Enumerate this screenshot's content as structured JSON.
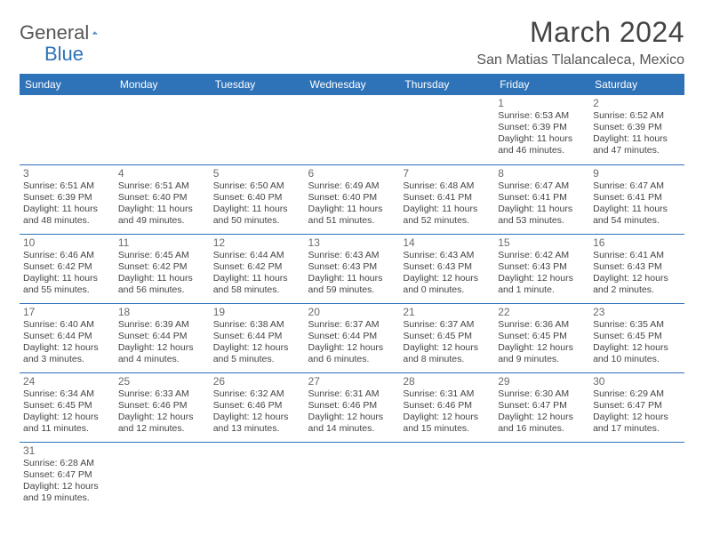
{
  "brand": {
    "word1": "General",
    "word2": "Blue"
  },
  "title": "March 2024",
  "location": "San Matias Tlalancaleca, Mexico",
  "colors": {
    "header_bg": "#2e72b8",
    "header_text": "#ffffff",
    "row_divider": "#2e72b8",
    "text": "#444444",
    "daynum": "#6a6a6a",
    "page_bg": "#ffffff"
  },
  "day_headers": [
    "Sunday",
    "Monday",
    "Tuesday",
    "Wednesday",
    "Thursday",
    "Friday",
    "Saturday"
  ],
  "weeks": [
    [
      null,
      null,
      null,
      null,
      null,
      {
        "n": "1",
        "sr": "Sunrise: 6:53 AM",
        "ss": "Sunset: 6:39 PM",
        "d1": "Daylight: 11 hours",
        "d2": "and 46 minutes."
      },
      {
        "n": "2",
        "sr": "Sunrise: 6:52 AM",
        "ss": "Sunset: 6:39 PM",
        "d1": "Daylight: 11 hours",
        "d2": "and 47 minutes."
      }
    ],
    [
      {
        "n": "3",
        "sr": "Sunrise: 6:51 AM",
        "ss": "Sunset: 6:39 PM",
        "d1": "Daylight: 11 hours",
        "d2": "and 48 minutes."
      },
      {
        "n": "4",
        "sr": "Sunrise: 6:51 AM",
        "ss": "Sunset: 6:40 PM",
        "d1": "Daylight: 11 hours",
        "d2": "and 49 minutes."
      },
      {
        "n": "5",
        "sr": "Sunrise: 6:50 AM",
        "ss": "Sunset: 6:40 PM",
        "d1": "Daylight: 11 hours",
        "d2": "and 50 minutes."
      },
      {
        "n": "6",
        "sr": "Sunrise: 6:49 AM",
        "ss": "Sunset: 6:40 PM",
        "d1": "Daylight: 11 hours",
        "d2": "and 51 minutes."
      },
      {
        "n": "7",
        "sr": "Sunrise: 6:48 AM",
        "ss": "Sunset: 6:41 PM",
        "d1": "Daylight: 11 hours",
        "d2": "and 52 minutes."
      },
      {
        "n": "8",
        "sr": "Sunrise: 6:47 AM",
        "ss": "Sunset: 6:41 PM",
        "d1": "Daylight: 11 hours",
        "d2": "and 53 minutes."
      },
      {
        "n": "9",
        "sr": "Sunrise: 6:47 AM",
        "ss": "Sunset: 6:41 PM",
        "d1": "Daylight: 11 hours",
        "d2": "and 54 minutes."
      }
    ],
    [
      {
        "n": "10",
        "sr": "Sunrise: 6:46 AM",
        "ss": "Sunset: 6:42 PM",
        "d1": "Daylight: 11 hours",
        "d2": "and 55 minutes."
      },
      {
        "n": "11",
        "sr": "Sunrise: 6:45 AM",
        "ss": "Sunset: 6:42 PM",
        "d1": "Daylight: 11 hours",
        "d2": "and 56 minutes."
      },
      {
        "n": "12",
        "sr": "Sunrise: 6:44 AM",
        "ss": "Sunset: 6:42 PM",
        "d1": "Daylight: 11 hours",
        "d2": "and 58 minutes."
      },
      {
        "n": "13",
        "sr": "Sunrise: 6:43 AM",
        "ss": "Sunset: 6:43 PM",
        "d1": "Daylight: 11 hours",
        "d2": "and 59 minutes."
      },
      {
        "n": "14",
        "sr": "Sunrise: 6:43 AM",
        "ss": "Sunset: 6:43 PM",
        "d1": "Daylight: 12 hours",
        "d2": "and 0 minutes."
      },
      {
        "n": "15",
        "sr": "Sunrise: 6:42 AM",
        "ss": "Sunset: 6:43 PM",
        "d1": "Daylight: 12 hours",
        "d2": "and 1 minute."
      },
      {
        "n": "16",
        "sr": "Sunrise: 6:41 AM",
        "ss": "Sunset: 6:43 PM",
        "d1": "Daylight: 12 hours",
        "d2": "and 2 minutes."
      }
    ],
    [
      {
        "n": "17",
        "sr": "Sunrise: 6:40 AM",
        "ss": "Sunset: 6:44 PM",
        "d1": "Daylight: 12 hours",
        "d2": "and 3 minutes."
      },
      {
        "n": "18",
        "sr": "Sunrise: 6:39 AM",
        "ss": "Sunset: 6:44 PM",
        "d1": "Daylight: 12 hours",
        "d2": "and 4 minutes."
      },
      {
        "n": "19",
        "sr": "Sunrise: 6:38 AM",
        "ss": "Sunset: 6:44 PM",
        "d1": "Daylight: 12 hours",
        "d2": "and 5 minutes."
      },
      {
        "n": "20",
        "sr": "Sunrise: 6:37 AM",
        "ss": "Sunset: 6:44 PM",
        "d1": "Daylight: 12 hours",
        "d2": "and 6 minutes."
      },
      {
        "n": "21",
        "sr": "Sunrise: 6:37 AM",
        "ss": "Sunset: 6:45 PM",
        "d1": "Daylight: 12 hours",
        "d2": "and 8 minutes."
      },
      {
        "n": "22",
        "sr": "Sunrise: 6:36 AM",
        "ss": "Sunset: 6:45 PM",
        "d1": "Daylight: 12 hours",
        "d2": "and 9 minutes."
      },
      {
        "n": "23",
        "sr": "Sunrise: 6:35 AM",
        "ss": "Sunset: 6:45 PM",
        "d1": "Daylight: 12 hours",
        "d2": "and 10 minutes."
      }
    ],
    [
      {
        "n": "24",
        "sr": "Sunrise: 6:34 AM",
        "ss": "Sunset: 6:45 PM",
        "d1": "Daylight: 12 hours",
        "d2": "and 11 minutes."
      },
      {
        "n": "25",
        "sr": "Sunrise: 6:33 AM",
        "ss": "Sunset: 6:46 PM",
        "d1": "Daylight: 12 hours",
        "d2": "and 12 minutes."
      },
      {
        "n": "26",
        "sr": "Sunrise: 6:32 AM",
        "ss": "Sunset: 6:46 PM",
        "d1": "Daylight: 12 hours",
        "d2": "and 13 minutes."
      },
      {
        "n": "27",
        "sr": "Sunrise: 6:31 AM",
        "ss": "Sunset: 6:46 PM",
        "d1": "Daylight: 12 hours",
        "d2": "and 14 minutes."
      },
      {
        "n": "28",
        "sr": "Sunrise: 6:31 AM",
        "ss": "Sunset: 6:46 PM",
        "d1": "Daylight: 12 hours",
        "d2": "and 15 minutes."
      },
      {
        "n": "29",
        "sr": "Sunrise: 6:30 AM",
        "ss": "Sunset: 6:47 PM",
        "d1": "Daylight: 12 hours",
        "d2": "and 16 minutes."
      },
      {
        "n": "30",
        "sr": "Sunrise: 6:29 AM",
        "ss": "Sunset: 6:47 PM",
        "d1": "Daylight: 12 hours",
        "d2": "and 17 minutes."
      }
    ],
    [
      {
        "n": "31",
        "sr": "Sunrise: 6:28 AM",
        "ss": "Sunset: 6:47 PM",
        "d1": "Daylight: 12 hours",
        "d2": "and 19 minutes."
      },
      null,
      null,
      null,
      null,
      null,
      null
    ]
  ]
}
